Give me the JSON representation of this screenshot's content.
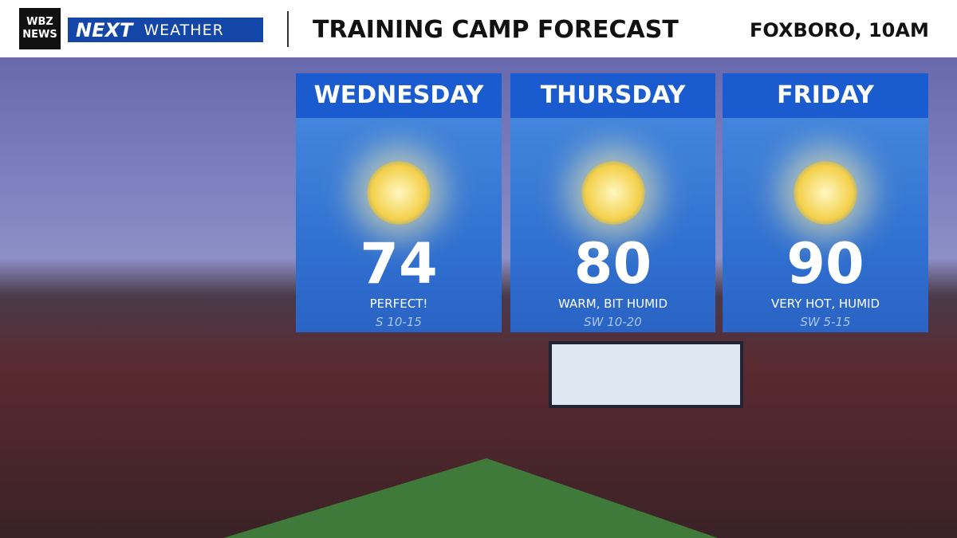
{
  "header": {
    "logo_top": "WBZ",
    "logo_bottom": "NEWS",
    "brand": "NEXT",
    "brand_sub": "WEATHER",
    "title": "TRAINING CAMP FORECAST",
    "location": "FOXBORO, 10AM"
  },
  "days": [
    {
      "name": "WEDNESDAY",
      "temp": 74,
      "condition": "PERFECT!",
      "wind": "S 10-15"
    },
    {
      "name": "THURSDAY",
      "temp": 80,
      "condition": "WARM,  BIT HUMID",
      "wind": "SW 10-20"
    },
    {
      "name": "FRIDAY",
      "temp": 90,
      "condition": "VERY HOT, HUMID",
      "wind": "SW 5-15"
    }
  ]
}
